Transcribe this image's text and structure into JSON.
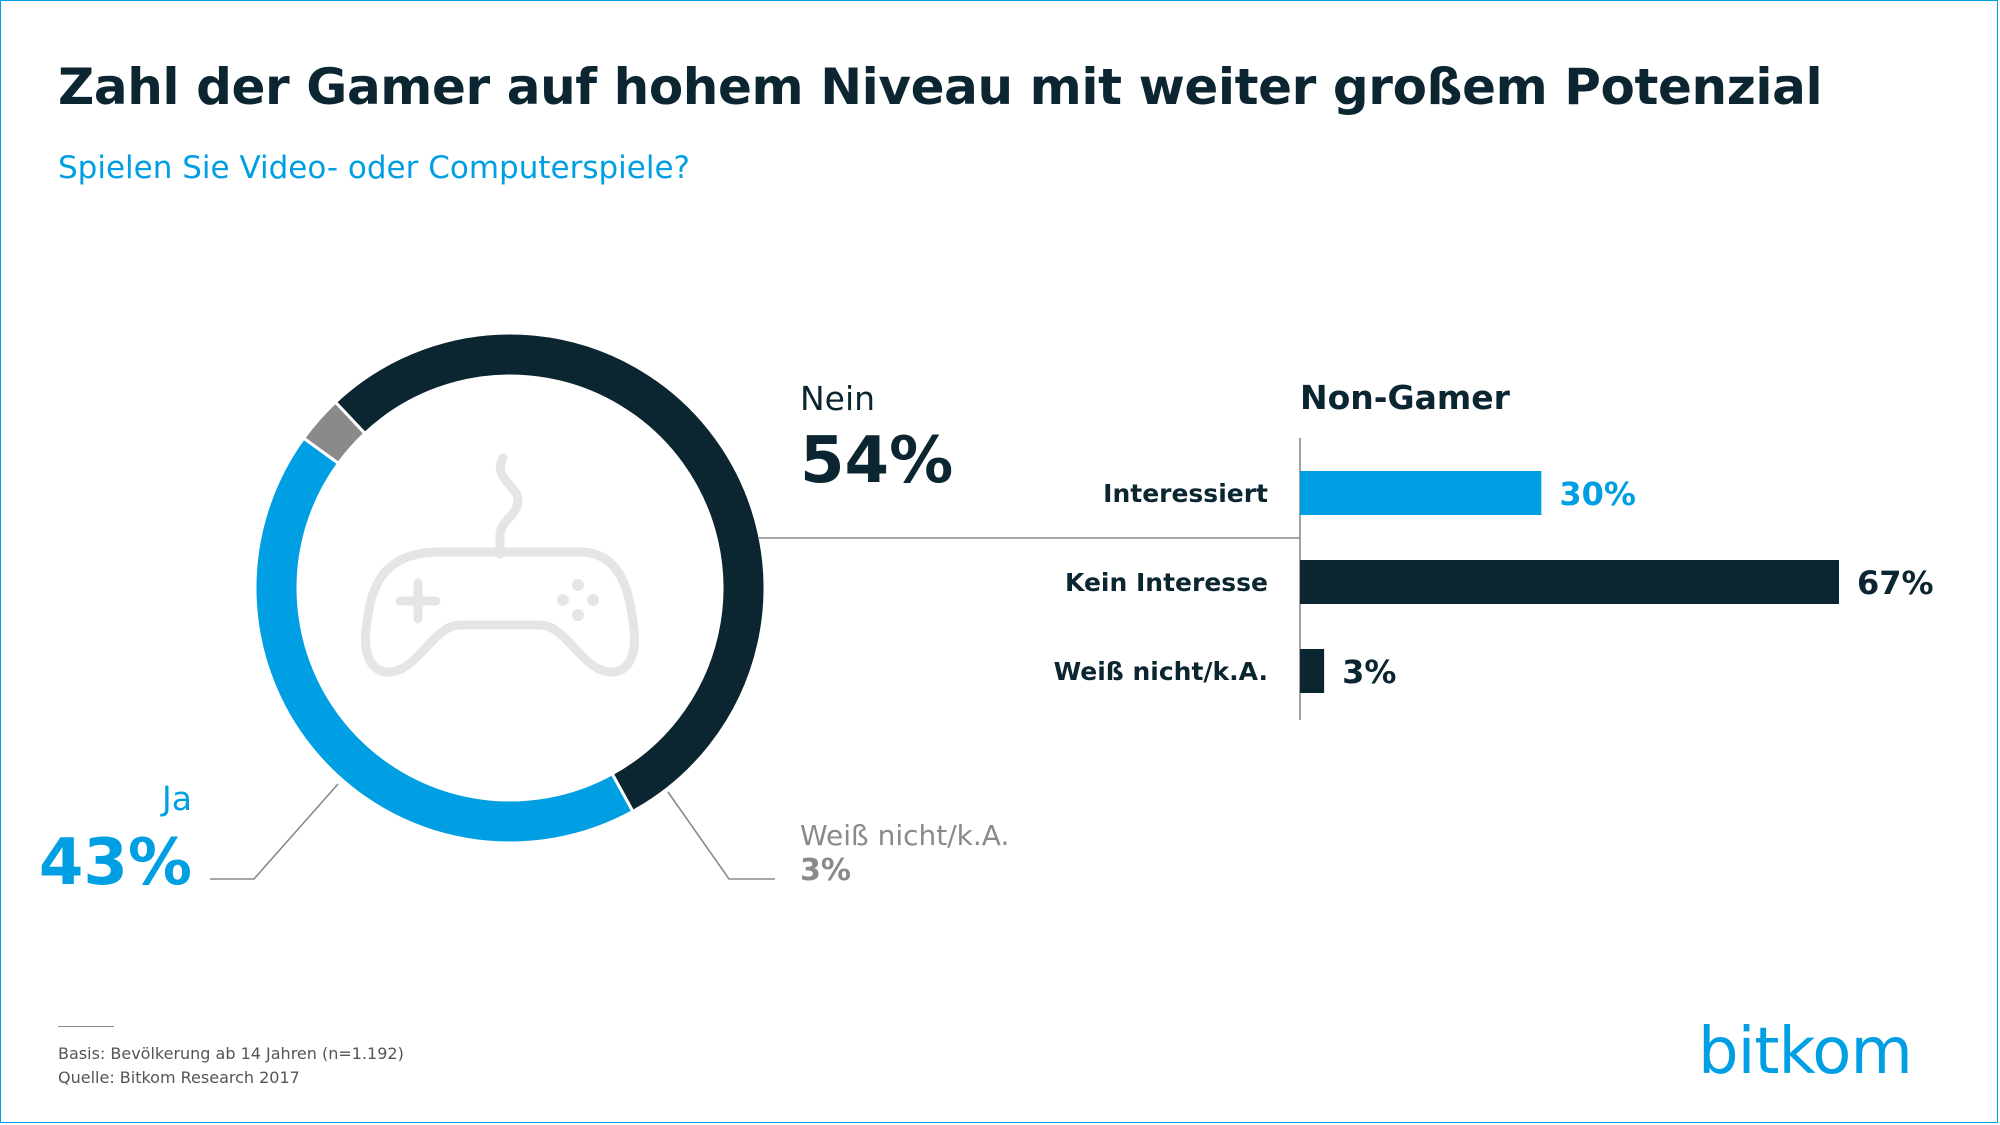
{
  "title": "Zahl der Gamer auf hohem Niveau mit weiter großem Potenzial",
  "subtitle": "Spielen Sie Video- oder Computerspiele?",
  "colors": {
    "dark": "#0b2531",
    "blue": "#009fe3",
    "grey": "#8a8a8a",
    "icon": "#e5e5e5"
  },
  "chart_data": [
    {
      "type": "pie",
      "variant": "donut",
      "title": "Spielen Sie Video- oder Computerspiele?",
      "center_icon": "gamepad-icon",
      "slices": [
        {
          "label": "Nein",
          "value_label": "54%",
          "value": 54,
          "color": "#0b2531"
        },
        {
          "label": "Ja",
          "value_label": "43%",
          "value": 43,
          "color": "#009fe3"
        },
        {
          "label": "Weiß nicht/k.A.",
          "value_label": "3%",
          "value": 3,
          "color": "#8a8a8a"
        }
      ]
    },
    {
      "type": "bar",
      "orientation": "horizontal",
      "title": "Non-Gamer",
      "categories": [
        "Interessiert",
        "Kein Interesse",
        "Weiß nicht/k.A."
      ],
      "values": [
        30,
        67,
        3
      ],
      "value_labels": [
        "30%",
        "67%",
        "3%"
      ],
      "colors": [
        "#009fe3",
        "#0b2531",
        "#0b2531"
      ],
      "xlim": [
        0,
        67
      ]
    }
  ],
  "footer": {
    "basis": "Basis: Bevölkerung ab 14 Jahren (n=1.192)",
    "source": "Quelle: Bitkom Research 2017"
  },
  "logo": "bitkom"
}
